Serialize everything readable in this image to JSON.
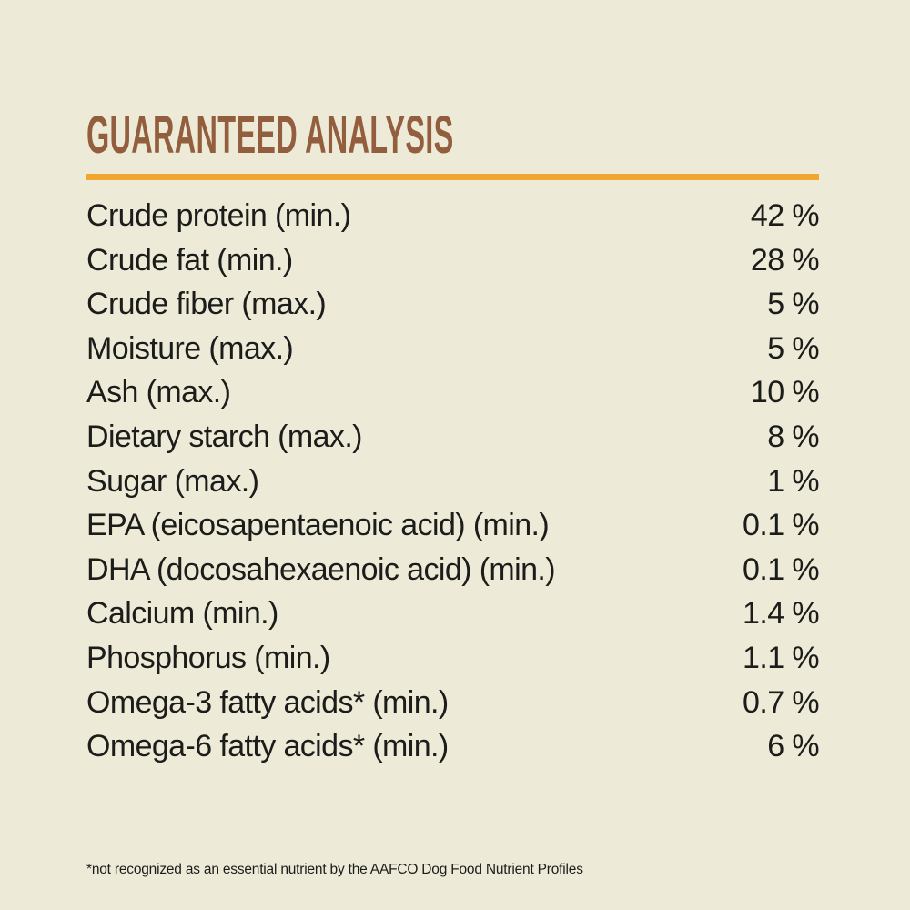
{
  "page": {
    "background_color": "#EDEBD8",
    "title_color": "#935E3E",
    "divider_color": "#F1A72F",
    "text_color": "#1C1C1A"
  },
  "header": {
    "title": "GUARANTEED ANALYSIS"
  },
  "analysis": {
    "rows": [
      {
        "label": "Crude protein (min.)",
        "value": "42 %"
      },
      {
        "label": "Crude fat (min.)",
        "value": "28 %"
      },
      {
        "label": "Crude fiber (max.)",
        "value": "5 %"
      },
      {
        "label": "Moisture (max.)",
        "value": "5 %"
      },
      {
        "label": "Ash (max.)",
        "value": "10 %"
      },
      {
        "label": "Dietary starch (max.)",
        "value": "8 %"
      },
      {
        "label": "Sugar (max.)",
        "value": "1 %"
      },
      {
        "label": "EPA (eicosapentaenoic acid) (min.)",
        "value": "0.1 %"
      },
      {
        "label": "DHA (docosahexaenoic acid) (min.)",
        "value": "0.1 %"
      },
      {
        "label": "Calcium (min.)",
        "value": "1.4 %"
      },
      {
        "label": "Phosphorus (min.)",
        "value": "1.1 %"
      },
      {
        "label": "Omega-3 fatty acids* (min.)",
        "value": "0.7 %"
      },
      {
        "label": "Omega-6 fatty acids* (min.)",
        "value": "6 %"
      }
    ],
    "footnote": "*not recognized as an essential nutrient by the AAFCO Dog Food Nutrient Profiles"
  }
}
